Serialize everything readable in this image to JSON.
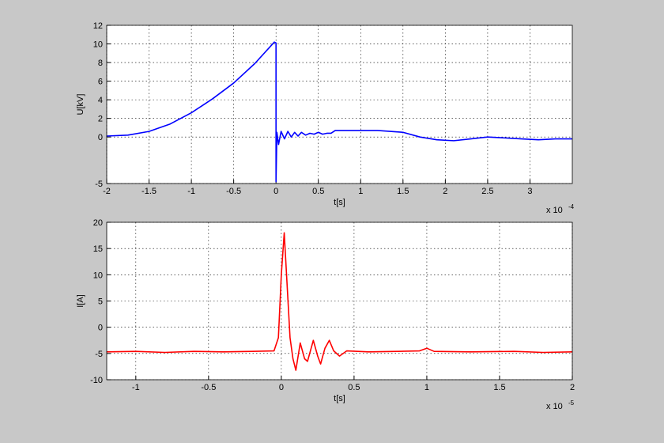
{
  "chart_data": [
    {
      "type": "line",
      "x_label": "t[s]",
      "y_label": "U[kV]",
      "x_scale_base": "x 10",
      "x_scale_exponent": "-4",
      "xlim": [
        -2,
        3.5
      ],
      "ylim": [
        -5,
        12
      ],
      "xticks": [
        -2,
        -1.5,
        -1,
        -0.5,
        0,
        0.5,
        1,
        1.5,
        2,
        2.5,
        3
      ],
      "yticks": [
        -5,
        0,
        2,
        4,
        6,
        8,
        10,
        12
      ],
      "grid": true,
      "x": [
        -2,
        -1.75,
        -1.5,
        -1.25,
        -1,
        -0.75,
        -0.5,
        -0.25,
        -0.02,
        0,
        0,
        0.01,
        0.03,
        0.06,
        0.1,
        0.14,
        0.18,
        0.22,
        0.26,
        0.3,
        0.35,
        0.4,
        0.45,
        0.5,
        0.55,
        0.6,
        0.65,
        0.7,
        0.9,
        1.2,
        1.5,
        1.7,
        1.9,
        2.1,
        2.3,
        2.5,
        2.7,
        2.9,
        3.1,
        3.3,
        3.5
      ],
      "series": [
        {
          "color": "#0000ff",
          "values": [
            0.1,
            0.2,
            0.6,
            1.4,
            2.6,
            4.1,
            5.8,
            7.9,
            10.2,
            10.1,
            -4.8,
            0.5,
            -0.8,
            0.6,
            -0.2,
            0.6,
            0,
            0.5,
            0.1,
            0.5,
            0.2,
            0.4,
            0.3,
            0.5,
            0.3,
            0.4,
            0.4,
            0.7,
            0.7,
            0.7,
            0.5,
            0,
            -0.3,
            -0.4,
            -0.2,
            0,
            -0.1,
            -0.2,
            -0.3,
            -0.2,
            -0.2
          ]
        }
      ]
    },
    {
      "type": "line",
      "x_label": "t[s]",
      "y_label": "I[A]",
      "x_scale_base": "x 10",
      "x_scale_exponent": "-5",
      "xlim": [
        -1.2,
        2
      ],
      "ylim": [
        -10,
        20
      ],
      "xticks": [
        -1,
        -0.5,
        0,
        0.5,
        1,
        1.5,
        2
      ],
      "yticks": [
        -10,
        -5,
        0,
        5,
        10,
        15,
        20
      ],
      "grid": true,
      "x": [
        -1.2,
        -1,
        -0.8,
        -0.6,
        -0.4,
        -0.2,
        -0.05,
        -0.02,
        0,
        0.02,
        0.04,
        0.06,
        0.08,
        0.1,
        0.13,
        0.16,
        0.18,
        0.22,
        0.25,
        0.27,
        0.3,
        0.33,
        0.36,
        0.4,
        0.45,
        0.6,
        0.8,
        0.95,
        1,
        1.05,
        1.3,
        1.6,
        1.8,
        2
      ],
      "series": [
        {
          "color": "#ff0000",
          "values": [
            -4.7,
            -4.6,
            -4.8,
            -4.6,
            -4.7,
            -4.6,
            -4.5,
            -2,
            10,
            18,
            8,
            -2,
            -6,
            -8.2,
            -3,
            -6,
            -6.5,
            -2.5,
            -5.5,
            -7,
            -4,
            -2.5,
            -4.5,
            -5.5,
            -4.5,
            -4.7,
            -4.6,
            -4.5,
            -4,
            -4.6,
            -4.7,
            -4.6,
            -4.8,
            -4.7
          ]
        }
      ]
    }
  ]
}
